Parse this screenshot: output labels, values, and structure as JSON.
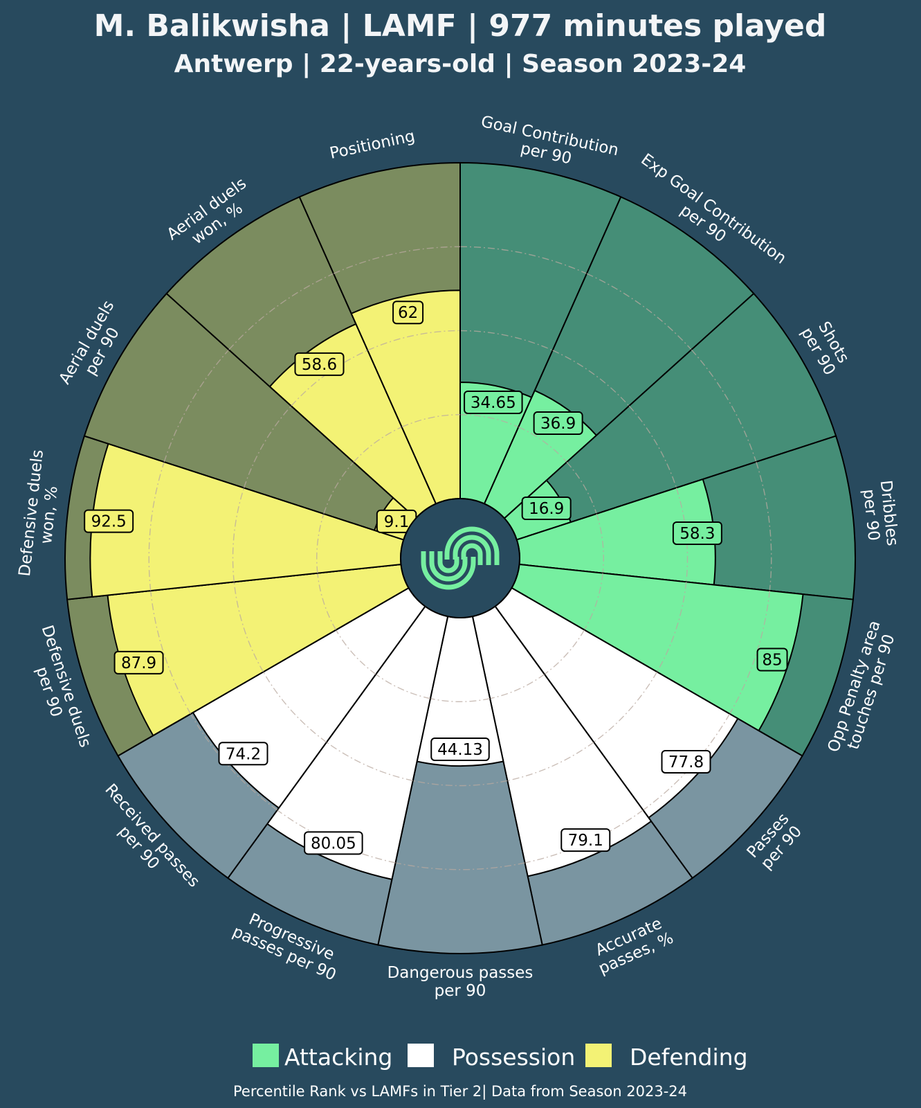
{
  "header": {
    "title": "M. Balikwisha | LAMF | 977 minutes played",
    "subtitle": "Antwerp | 22-years-old | Season 2023-24"
  },
  "legend": [
    {
      "label": "Attacking",
      "color": "#76efa0"
    },
    {
      "label": "Possession",
      "color": "#ffffff"
    },
    {
      "label": "Defending",
      "color": "#f3f275"
    }
  ],
  "footer": "Percentile Rank vs LAMFs in Tier 2| Data from Season 2023-24",
  "logo": "swirl-logo-icon",
  "colors": {
    "background": "#284a5e",
    "attacking": "#76efa0",
    "attacking_bg": "#458e77",
    "possession": "#ffffff",
    "possession_bg": "#7a95a1",
    "defending": "#f3f275",
    "defending_bg": "#7b8c5f"
  },
  "chart_data": {
    "type": "pizza",
    "range": [
      0,
      100
    ],
    "categories": [
      "Attacking",
      "Possession",
      "Defending"
    ],
    "slices": [
      {
        "label": "Goal Contribution per 90",
        "lines": [
          "Goal Contribution",
          "per 90"
        ],
        "value": 34.65,
        "category": "Attacking"
      },
      {
        "label": "Exp Goal Contribution per 90",
        "lines": [
          "Exp Goal Contribution",
          "per 90"
        ],
        "value": 36.9,
        "category": "Attacking"
      },
      {
        "label": "Shots per 90",
        "lines": [
          "Shots",
          "per 90"
        ],
        "value": 16.9,
        "category": "Attacking"
      },
      {
        "label": "Dribbles per 90",
        "lines": [
          "Dribbles",
          "per 90"
        ],
        "value": 58.3,
        "category": "Attacking"
      },
      {
        "label": "Opp Penalty area touches per 90",
        "lines": [
          "Opp Penalty area",
          "touches per 90"
        ],
        "value": 85.0,
        "category": "Attacking"
      },
      {
        "label": "Passes per 90",
        "lines": [
          "Passes",
          "per 90"
        ],
        "value": 77.8,
        "category": "Possession"
      },
      {
        "label": "Accurate passes, %",
        "lines": [
          "Accurate",
          "passes, %"
        ],
        "value": 79.1,
        "category": "Possession"
      },
      {
        "label": "Dangerous passes per 90",
        "lines": [
          "Dangerous passes",
          "per 90"
        ],
        "value": 44.13,
        "category": "Possession"
      },
      {
        "label": "Progressive passes per 90",
        "lines": [
          "Progressive",
          "passes per 90"
        ],
        "value": 80.05,
        "category": "Possession"
      },
      {
        "label": "Received passes per 90",
        "lines": [
          "Received passes",
          "per 90"
        ],
        "value": 74.2,
        "category": "Possession"
      },
      {
        "label": "Defensive duels per 90",
        "lines": [
          "Defensive duels",
          "per 90"
        ],
        "value": 87.9,
        "category": "Defending"
      },
      {
        "label": "Defensive duels won, %",
        "lines": [
          "Defensive duels",
          "won, %"
        ],
        "value": 92.5,
        "category": "Defending"
      },
      {
        "label": "Aerial duels per 90",
        "lines": [
          "Aerial duels",
          "per 90"
        ],
        "value": 9.1,
        "category": "Defending"
      },
      {
        "label": "Aerial duels won, %",
        "lines": [
          "Aerial duels",
          "won, %"
        ],
        "value": 58.6,
        "category": "Defending"
      },
      {
        "label": "Positioning",
        "lines": [
          "Positioning"
        ],
        "value": 62.0,
        "category": "Defending"
      }
    ]
  }
}
